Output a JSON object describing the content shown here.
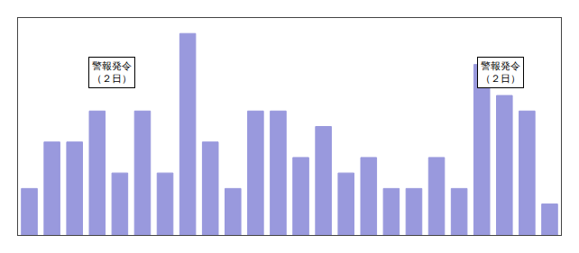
{
  "chart_data": {
    "type": "bar",
    "categories": [
      null,
      null,
      null,
      null,
      null,
      null,
      null,
      null,
      null,
      null,
      null,
      null,
      null,
      null,
      null,
      null,
      null,
      null,
      null,
      null,
      null,
      null,
      null,
      null
    ],
    "values": [
      3,
      6,
      6,
      8,
      4,
      8,
      4,
      13,
      6,
      3,
      8,
      8,
      5,
      7,
      4,
      5,
      3,
      3,
      5,
      3,
      11,
      9,
      8,
      2
    ],
    "color": "#9999dd",
    "ylim": [
      0,
      14
    ],
    "annotations": [
      "警報発令\n（２日）",
      "警報発令\n（２日）"
    ],
    "grid": false,
    "tick_labels": false
  }
}
